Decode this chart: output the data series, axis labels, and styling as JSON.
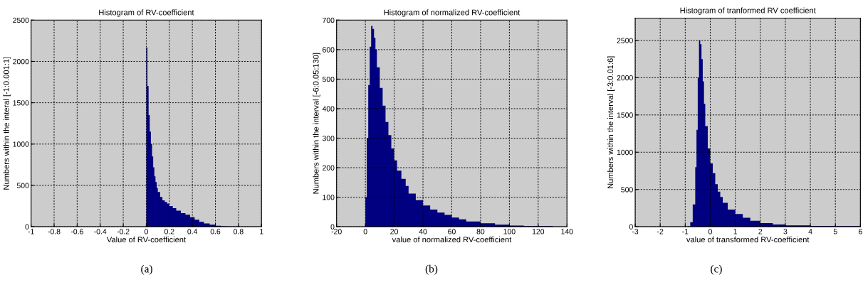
{
  "chart_data": [
    {
      "type": "histogram",
      "title": "Histogram of RV-coefficient",
      "xlabel": "Value of RV-coefficient",
      "ylabel": "Numbers within the interal [-1:0.001:1]",
      "color": "#000080",
      "bins": [
        -1,
        0,
        0.01,
        0.02,
        0.03,
        0.04,
        0.05,
        0.06,
        0.07,
        0.08,
        0.09,
        0.1,
        0.12,
        0.14,
        0.16,
        0.18,
        0.2,
        0.23,
        0.26,
        0.3,
        0.34,
        0.38,
        0.42,
        0.46,
        0.5,
        0.55,
        0.6,
        0.65,
        0.7,
        0.8,
        0.9
      ],
      "values": [
        0,
        2170,
        1700,
        1350,
        1150,
        1000,
        850,
        720,
        610,
        540,
        470,
        420,
        360,
        320,
        300,
        280,
        250,
        225,
        195,
        165,
        145,
        115,
        85,
        60,
        40,
        25,
        12,
        6,
        3,
        1
      ],
      "xlim": [
        -1,
        1
      ],
      "ylim": [
        0,
        2500
      ],
      "xticks": [
        -1,
        -0.8,
        -0.6,
        -0.4,
        -0.2,
        0,
        0.2,
        0.4,
        0.6,
        0.8,
        1
      ],
      "yticks": [
        0,
        500,
        1000,
        1500,
        2000,
        2500
      ],
      "grid": true,
      "annotations": [
        "(a)"
      ]
    },
    {
      "type": "histogram",
      "title": "Histogram of normalized RV-coefficient",
      "xlabel": "value of normalized RV-coefficient",
      "ylabel": "Numbers within the interval [-6:0.05:130]",
      "color": "#000080",
      "bins": [
        0,
        1,
        2,
        3,
        4,
        5,
        6,
        7,
        8,
        10,
        12,
        14,
        16,
        18,
        20,
        22,
        25,
        28,
        30,
        35,
        40,
        45,
        50,
        55,
        60,
        65,
        70,
        80,
        90,
        100,
        110,
        120,
        130
      ],
      "values": [
        100,
        300,
        480,
        610,
        680,
        670,
        640,
        600,
        540,
        470,
        410,
        355,
        310,
        265,
        225,
        190,
        162,
        138,
        112,
        90,
        72,
        58,
        48,
        40,
        31,
        25,
        18,
        12,
        7,
        4,
        2,
        2
      ],
      "xlim": [
        -20,
        140
      ],
      "ylim": [
        0,
        700
      ],
      "xticks": [
        -20,
        0,
        20,
        40,
        60,
        80,
        100,
        120,
        140
      ],
      "yticks": [
        0,
        100,
        200,
        300,
        400,
        500,
        600,
        700
      ],
      "grid": true,
      "annotations": [
        "(b)"
      ]
    },
    {
      "type": "histogram",
      "title": "Histogram of tranformed RV coefficient",
      "xlabel": "value of transformed RV-coefficient",
      "ylabel": "Numbers within the interval [-3:0.01:6]",
      "color": "#000080",
      "bins": [
        -1,
        -0.8,
        -0.7,
        -0.6,
        -0.55,
        -0.5,
        -0.45,
        -0.4,
        -0.35,
        -0.3,
        -0.25,
        -0.2,
        -0.1,
        0,
        0.1,
        0.2,
        0.3,
        0.4,
        0.5,
        0.7,
        1,
        1.3,
        1.6,
        2,
        2.5,
        3,
        4,
        5,
        6
      ],
      "values": [
        5,
        60,
        300,
        800,
        1300,
        2000,
        2500,
        2450,
        2250,
        1950,
        1650,
        1350,
        1050,
        850,
        720,
        570,
        470,
        400,
        320,
        230,
        170,
        120,
        80,
        50,
        30,
        18,
        12,
        8
      ],
      "xlim": [
        -3,
        6
      ],
      "ylim": [
        0,
        2800
      ],
      "xticks": [
        -3,
        -2,
        -1,
        0,
        1,
        2,
        3,
        4,
        5,
        6
      ],
      "yticks": [
        0,
        500,
        1000,
        1500,
        2000,
        2500
      ],
      "grid": true,
      "annotations": [
        "(c)"
      ]
    }
  ]
}
